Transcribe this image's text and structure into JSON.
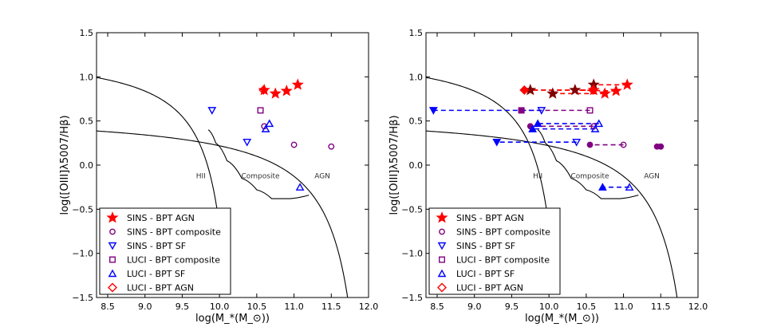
{
  "chart_data": [
    {
      "type": "scatter",
      "panel": "left",
      "xlabel": "log(M_*(M_⊙))",
      "ylabel": "log([OIII]λ5007/Hβ)",
      "xlim": [
        8.35,
        12.0
      ],
      "ylim": [
        -1.5,
        1.5
      ],
      "xticks": [
        8.5,
        9.0,
        9.5,
        10.0,
        10.5,
        11.0,
        11.5,
        12.0
      ],
      "yticks": [
        -1.5,
        -1.0,
        -0.5,
        0.0,
        0.5,
        1.0,
        1.5
      ],
      "region_labels": [
        {
          "text": "HII",
          "x": 9.75,
          "y": -0.15
        },
        {
          "text": "Composite",
          "x": 10.55,
          "y": -0.15
        },
        {
          "text": "AGN",
          "x": 11.38,
          "y": -0.15
        }
      ],
      "series": [
        {
          "name": "SINS - BPT AGN",
          "marker": "star",
          "color": "#ff0000",
          "filled": true,
          "points": [
            [
              10.6,
              0.85
            ],
            [
              10.75,
              0.81
            ],
            [
              10.9,
              0.84
            ],
            [
              11.05,
              0.91
            ]
          ]
        },
        {
          "name": "SINS - BPT composite",
          "marker": "circle",
          "color": "#800080",
          "filled": false,
          "points": [
            [
              10.6,
              0.44
            ],
            [
              11.0,
              0.23
            ],
            [
              11.5,
              0.21
            ]
          ]
        },
        {
          "name": "SINS - BPT SF",
          "marker": "triangle-down",
          "color": "#0000ff",
          "filled": false,
          "points": [
            [
              9.9,
              0.62
            ],
            [
              10.37,
              0.26
            ]
          ]
        },
        {
          "name": "LUCI - BPT composite",
          "marker": "square",
          "color": "#800080",
          "filled": false,
          "points": [
            [
              10.55,
              0.62
            ]
          ]
        },
        {
          "name": "LUCI - BPT SF",
          "marker": "triangle-up",
          "color": "#0000ff",
          "filled": false,
          "points": [
            [
              10.67,
              0.47
            ],
            [
              10.62,
              0.41
            ],
            [
              11.08,
              -0.25
            ]
          ]
        },
        {
          "name": "LUCI - BPT AGN",
          "marker": "diamond",
          "color": "#ff0000",
          "filled": false,
          "points": [
            [
              10.59,
              0.85
            ]
          ]
        }
      ],
      "legend": {
        "position": "lower-left"
      }
    },
    {
      "type": "scatter",
      "panel": "right",
      "xlabel": "log(M_*(M_⊙))",
      "ylabel": "log([OIII]λ5007/Hβ)",
      "xlim": [
        8.35,
        12.0
      ],
      "ylim": [
        -1.5,
        1.5
      ],
      "xticks": [
        8.5,
        9.0,
        9.5,
        10.0,
        10.5,
        11.0,
        11.5,
        12.0
      ],
      "yticks": [
        -1.5,
        -1.0,
        -0.5,
        0.0,
        0.5,
        1.0,
        1.5
      ],
      "region_labels": [
        {
          "text": "HII",
          "x": 9.85,
          "y": -0.15
        },
        {
          "text": "Composite",
          "x": 10.55,
          "y": -0.15
        },
        {
          "text": "AGN",
          "x": 11.38,
          "y": -0.15
        }
      ],
      "series": [
        {
          "name": "SINS - BPT AGN",
          "marker": "star",
          "color": "#ff0000",
          "filled": true,
          "points": [
            [
              10.6,
              0.85
            ],
            [
              10.75,
              0.81
            ],
            [
              10.9,
              0.84
            ],
            [
              11.05,
              0.91
            ]
          ]
        },
        {
          "name": "SINS - BPT composite",
          "marker": "circle",
          "color": "#800080",
          "filled": false,
          "points": [
            [
              10.6,
              0.44
            ],
            [
              11.0,
              0.23
            ],
            [
              11.5,
              0.21
            ]
          ]
        },
        {
          "name": "SINS - BPT SF",
          "marker": "triangle-down",
          "color": "#0000ff",
          "filled": false,
          "points": [
            [
              9.9,
              0.62
            ],
            [
              10.37,
              0.26
            ]
          ]
        },
        {
          "name": "LUCI - BPT composite",
          "marker": "square",
          "color": "#800080",
          "filled": false,
          "points": [
            [
              10.55,
              0.62
            ]
          ]
        },
        {
          "name": "LUCI - BPT SF",
          "marker": "triangle-up",
          "color": "#0000ff",
          "filled": false,
          "points": [
            [
              10.67,
              0.47
            ],
            [
              10.62,
              0.41
            ],
            [
              11.08,
              -0.25
            ]
          ]
        },
        {
          "name": "LUCI - BPT AGN",
          "marker": "diamond",
          "color": "#ff0000",
          "filled": false,
          "points": [
            [
              10.59,
              0.85
            ]
          ]
        }
      ],
      "shifted_points": [
        {
          "marker": "star",
          "color": "#800000",
          "points": [
            [
              9.75,
              0.85
            ],
            [
              10.05,
              0.81
            ],
            [
              10.35,
              0.85
            ],
            [
              10.6,
              0.91
            ]
          ]
        },
        {
          "marker": "circle",
          "color": "#800080",
          "points": [
            [
              9.75,
              0.44
            ],
            [
              10.55,
              0.23
            ],
            [
              11.45,
              0.21
            ],
            [
              11.5,
              0.21
            ]
          ]
        },
        {
          "marker": "triangle-down",
          "color": "#0000ff",
          "points": [
            [
              8.45,
              0.62
            ],
            [
              9.3,
              0.26
            ]
          ]
        },
        {
          "marker": "square",
          "color": "#800080",
          "points": [
            [
              9.63,
              0.62
            ]
          ]
        },
        {
          "marker": "triangle-up",
          "color": "#0000ff",
          "points": [
            [
              9.85,
              0.47
            ],
            [
              9.78,
              0.41
            ],
            [
              10.72,
              -0.25
            ]
          ]
        },
        {
          "marker": "diamond",
          "color": "#ff0000",
          "points": [
            [
              9.67,
              0.85
            ]
          ]
        }
      ],
      "connectors": [
        {
          "color": "#ff0000",
          "from": [
            10.6,
            0.85
          ],
          "to": [
            9.67,
            0.85
          ]
        },
        {
          "color": "#ff0000",
          "from": [
            10.6,
            0.85
          ],
          "to": [
            9.75,
            0.85
          ]
        },
        {
          "color": "#ff0000",
          "from": [
            10.75,
            0.81
          ],
          "to": [
            10.05,
            0.81
          ]
        },
        {
          "color": "#ff0000",
          "from": [
            10.9,
            0.84
          ],
          "to": [
            10.35,
            0.85
          ]
        },
        {
          "color": "#ff0000",
          "from": [
            11.05,
            0.91
          ],
          "to": [
            10.6,
            0.91
          ]
        },
        {
          "color": "#800080",
          "from": [
            10.55,
            0.62
          ],
          "to": [
            9.63,
            0.62
          ]
        },
        {
          "color": "#800080",
          "from": [
            10.6,
            0.44
          ],
          "to": [
            9.75,
            0.44
          ]
        },
        {
          "color": "#800080",
          "from": [
            11.0,
            0.23
          ],
          "to": [
            10.55,
            0.23
          ]
        },
        {
          "color": "#0000ff",
          "from": [
            9.9,
            0.62
          ],
          "to": [
            8.45,
            0.62
          ]
        },
        {
          "color": "#0000ff",
          "from": [
            10.37,
            0.26
          ],
          "to": [
            9.3,
            0.26
          ]
        },
        {
          "color": "#0000ff",
          "from": [
            10.67,
            0.47
          ],
          "to": [
            9.85,
            0.47
          ]
        },
        {
          "color": "#0000ff",
          "from": [
            10.62,
            0.41
          ],
          "to": [
            9.78,
            0.41
          ]
        },
        {
          "color": "#0000ff",
          "from": [
            11.08,
            -0.25
          ],
          "to": [
            10.72,
            -0.25
          ]
        }
      ],
      "legend": {
        "position": "lower-left"
      }
    }
  ]
}
